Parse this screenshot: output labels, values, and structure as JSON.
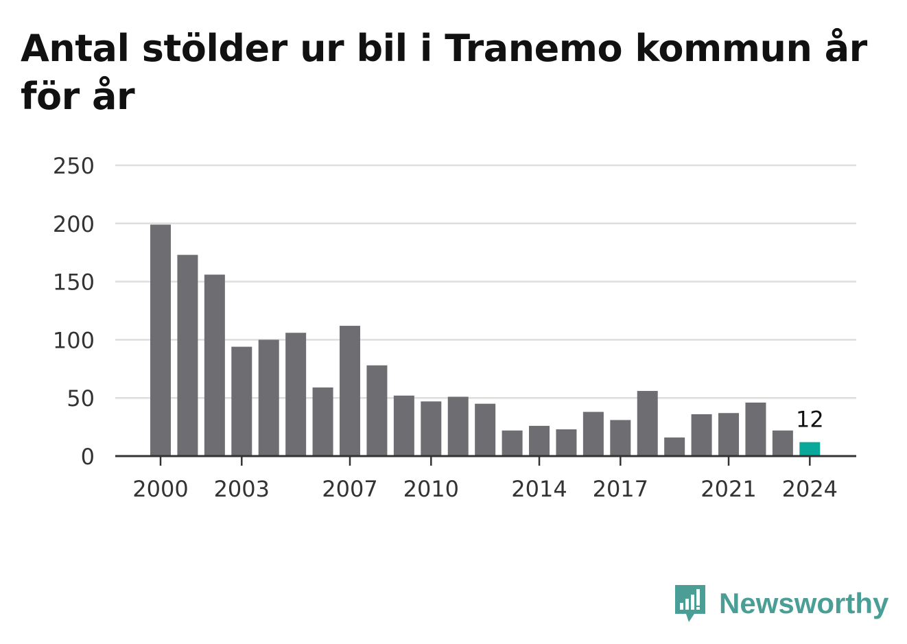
{
  "header": {
    "title": "Antal stölder ur bil i Tranemo kommun år för år"
  },
  "brand": {
    "name": "Newsworthy",
    "icon": "bar-chart-speech-bubble-icon",
    "color": "#4a9e96"
  },
  "chart_data": {
    "type": "bar",
    "title": "Antal stölder ur bil i Tranemo kommun år för år",
    "xlabel": "",
    "ylabel": "",
    "ylim": [
      0,
      250
    ],
    "yticks": [
      0,
      50,
      100,
      150,
      200,
      250
    ],
    "grid": true,
    "x": [
      2000,
      2001,
      2002,
      2003,
      2004,
      2005,
      2006,
      2007,
      2008,
      2009,
      2010,
      2011,
      2012,
      2013,
      2014,
      2015,
      2016,
      2017,
      2018,
      2019,
      2020,
      2021,
      2022,
      2023,
      2024
    ],
    "xticks": [
      2000,
      2003,
      2007,
      2010,
      2014,
      2017,
      2021,
      2024
    ],
    "values": [
      199,
      173,
      156,
      94,
      100,
      106,
      59,
      112,
      78,
      52,
      47,
      51,
      45,
      22,
      26,
      23,
      38,
      31,
      56,
      16,
      36,
      37,
      46,
      22,
      12
    ],
    "highlight": {
      "x": 2024,
      "value": 12,
      "label": "12"
    },
    "colors": {
      "bar": "#6e6e72",
      "highlight": "#0aa89a",
      "grid": "#dedede",
      "axis": "#333333"
    }
  }
}
